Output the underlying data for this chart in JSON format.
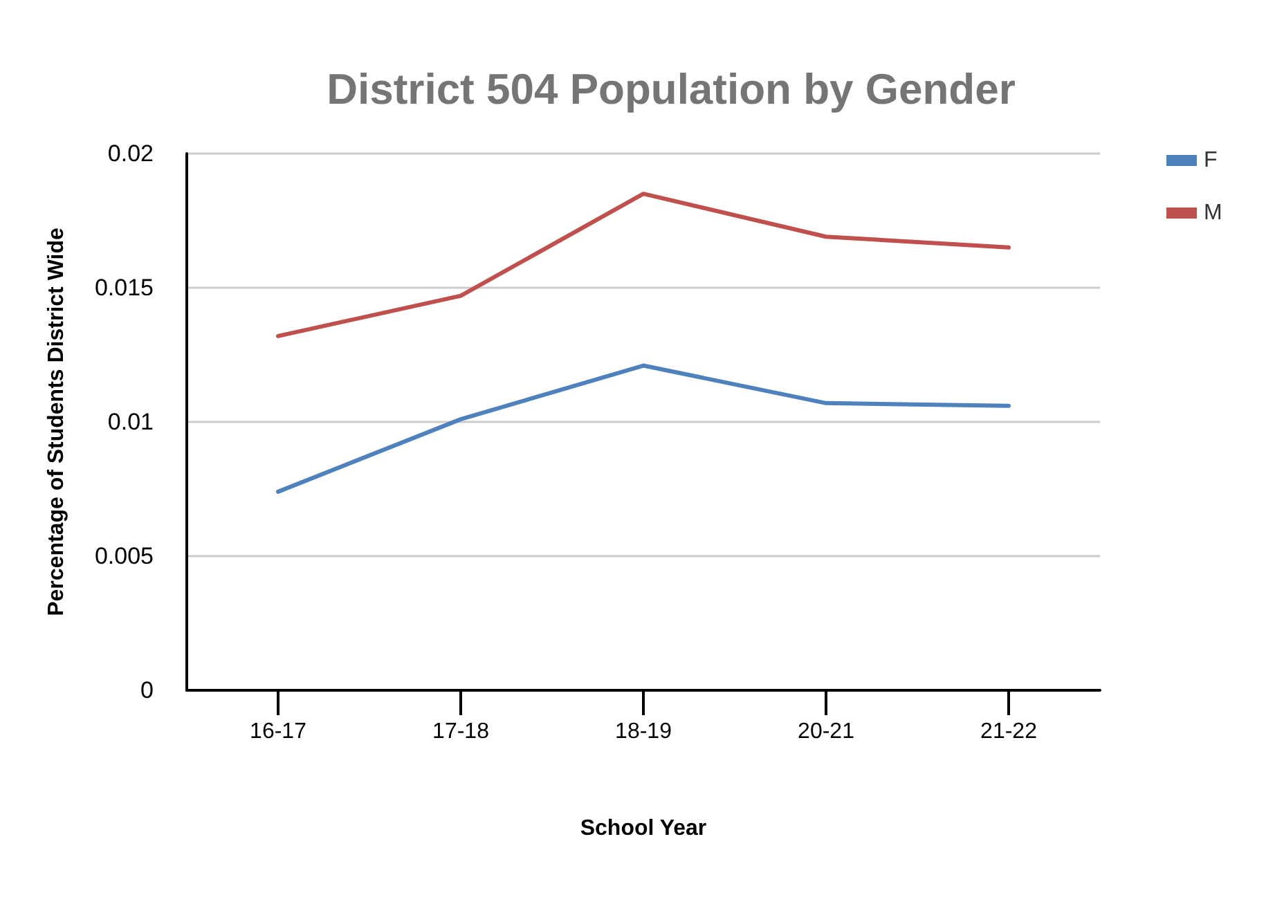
{
  "chart_data": {
    "type": "line",
    "title": "District 504 Population by Gender",
    "xlabel": "School Year",
    "ylabel": "Percentage of Students District Wide",
    "categories": [
      "16-17",
      "17-18",
      "18-19",
      "20-21",
      "21-22"
    ],
    "series": [
      {
        "name": "F",
        "color": "#4f81bd",
        "values": [
          0.0074,
          0.0101,
          0.0121,
          0.0107,
          0.0106
        ]
      },
      {
        "name": "M",
        "color": "#c0504d",
        "values": [
          0.0132,
          0.0147,
          0.0185,
          0.0169,
          0.0165
        ]
      }
    ],
    "ylim": [
      0,
      0.02
    ],
    "yticks": [
      0,
      0.005,
      0.01,
      0.015,
      0.02
    ],
    "grid": "y",
    "legend": "top right",
    "marker": "none",
    "line_style": "solid"
  }
}
